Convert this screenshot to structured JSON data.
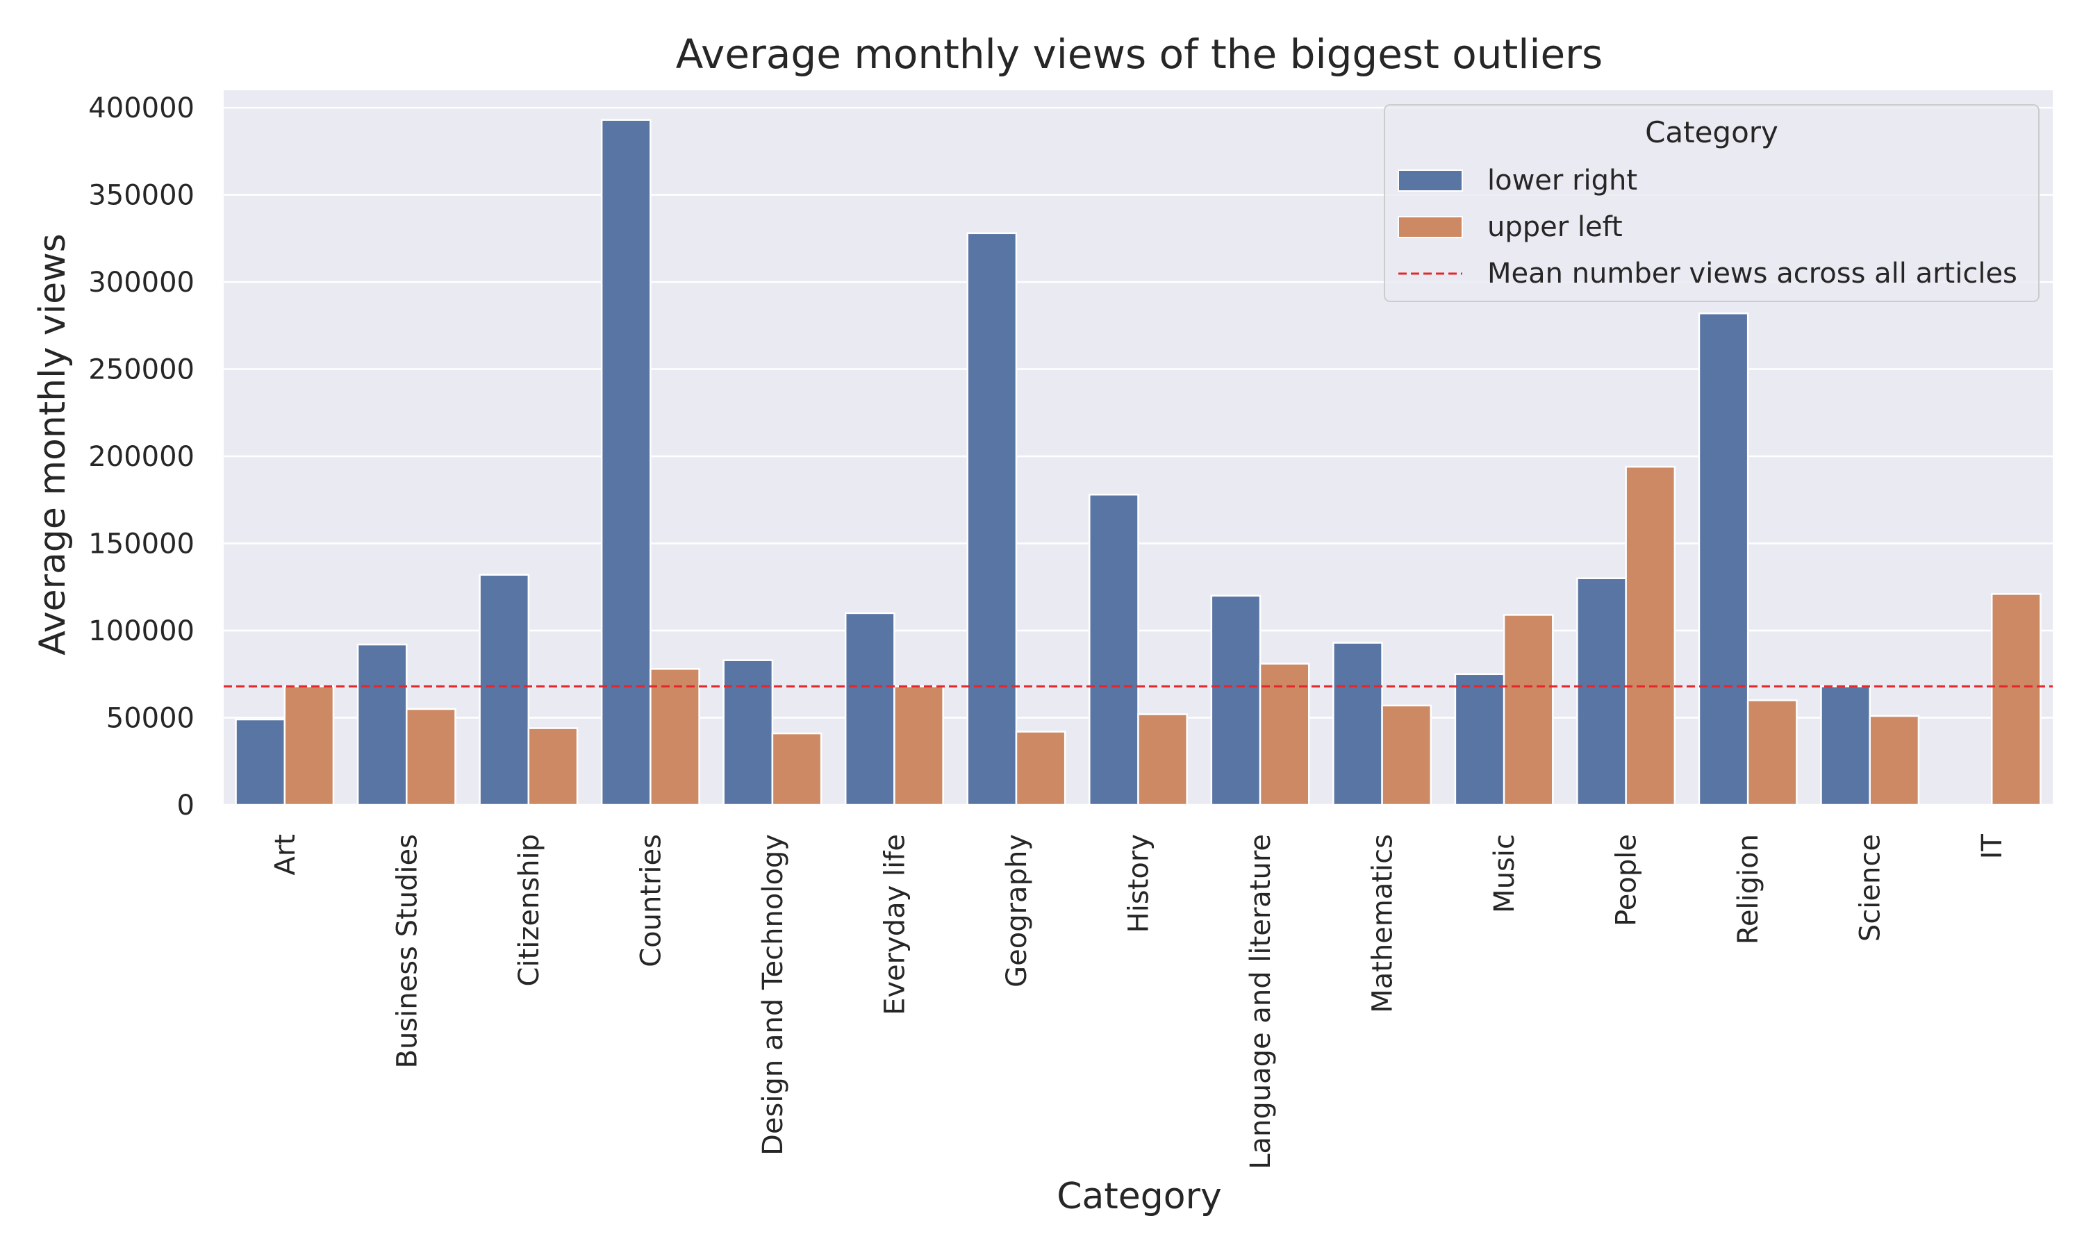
{
  "chart_data": {
    "type": "bar",
    "title": "Average monthly views of the biggest outliers",
    "xlabel": "Category",
    "ylabel": "Average monthly views",
    "ylim": [
      0,
      410000
    ],
    "yticks": [
      0,
      50000,
      100000,
      150000,
      200000,
      250000,
      300000,
      350000,
      400000
    ],
    "categories": [
      "Art",
      "Business Studies",
      "Citizenship",
      "Countries",
      "Design and Technology",
      "Everyday life",
      "Geography",
      "History",
      "Language and literature",
      "Mathematics",
      "Music",
      "People",
      "Religion",
      "Science",
      "IT"
    ],
    "series": [
      {
        "name": "lower right",
        "color": "#5975a4",
        "values": [
          49000,
          92000,
          132000,
          393000,
          83000,
          110000,
          328000,
          178000,
          120000,
          93000,
          75000,
          130000,
          282000,
          68000,
          null
        ]
      },
      {
        "name": "upper left",
        "color": "#cc8963",
        "values": [
          68000,
          55000,
          44000,
          78000,
          41000,
          68000,
          42000,
          52000,
          81000,
          57000,
          109000,
          194000,
          60000,
          51000,
          121000
        ]
      }
    ],
    "reference_line": {
      "name": "Mean number views across all articles",
      "value": 68000,
      "color": "#e5262b",
      "style": "dashed"
    },
    "legend": {
      "title": "Category",
      "placement": "upper right"
    },
    "grid": true,
    "background": "#eaeaf2"
  }
}
